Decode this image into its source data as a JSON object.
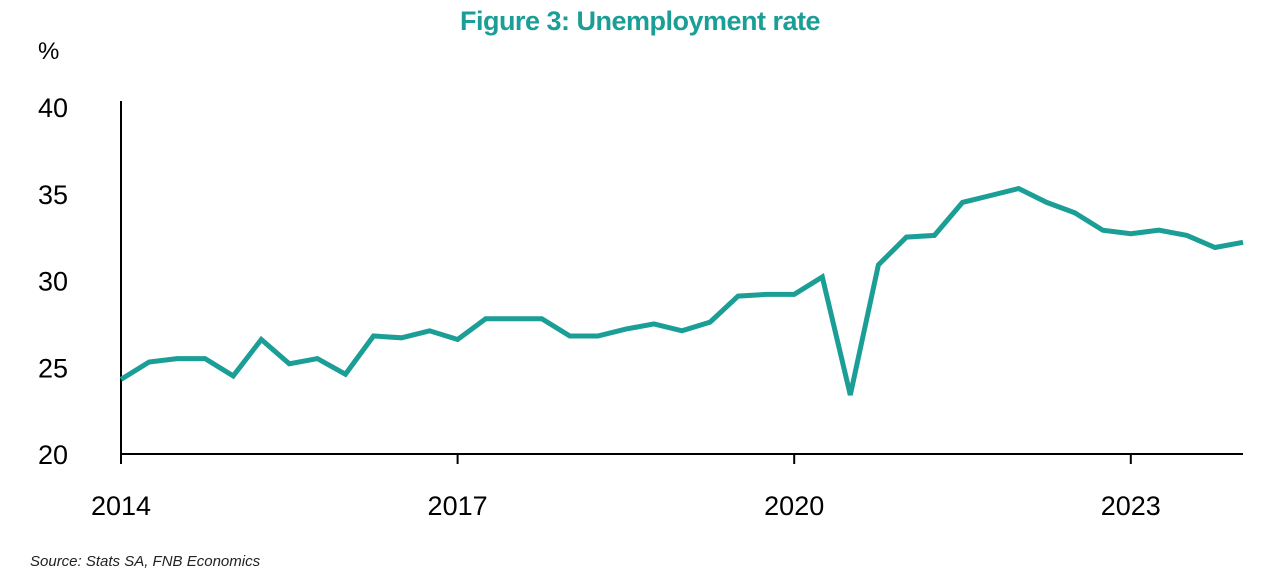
{
  "title": "Figure 3: Unemployment rate",
  "source": "Source: Stats SA, FNB Economics",
  "colors": {
    "line": "#1a9e96",
    "axis": "#000000",
    "title": "#1a9e96"
  },
  "chart_data": {
    "type": "line",
    "title": "Figure 3: Unemployment rate",
    "ylabel": "%",
    "xlabel": "",
    "ylim": [
      20,
      40
    ],
    "xlim": [
      2014.0,
      2024.0
    ],
    "yticks": [
      20,
      25,
      30,
      35,
      40
    ],
    "xticks": [
      2014,
      2017,
      2020,
      2023
    ],
    "grid": false,
    "legend": "none",
    "series": [
      {
        "x": [
          2014.0,
          2014.25,
          2014.5,
          2014.75,
          2015.0,
          2015.25,
          2015.5,
          2015.75,
          2016.0,
          2016.25,
          2016.5,
          2016.75,
          2017.0,
          2017.25,
          2017.5,
          2017.75,
          2018.0,
          2018.25,
          2018.5,
          2018.75,
          2019.0,
          2019.25,
          2019.5,
          2019.75,
          2020.0,
          2020.25,
          2020.5,
          2020.75,
          2021.0,
          2021.25,
          2021.5,
          2021.75,
          2022.0,
          2022.25,
          2022.5,
          2022.75,
          2023.0,
          2023.25,
          2023.5,
          2023.75,
          2024.0
        ],
        "values": [
          24.3,
          25.3,
          25.5,
          25.5,
          24.5,
          26.6,
          25.2,
          25.5,
          24.6,
          26.8,
          26.7,
          27.1,
          26.6,
          27.8,
          27.8,
          27.8,
          26.8,
          26.8,
          27.2,
          27.5,
          27.1,
          27.6,
          29.1,
          29.2,
          29.2,
          30.2,
          23.4,
          30.9,
          32.5,
          32.6,
          34.5,
          34.9,
          35.3,
          34.5,
          33.9,
          32.9,
          32.7,
          32.9,
          32.6,
          31.9,
          32.2
        ]
      }
    ]
  }
}
